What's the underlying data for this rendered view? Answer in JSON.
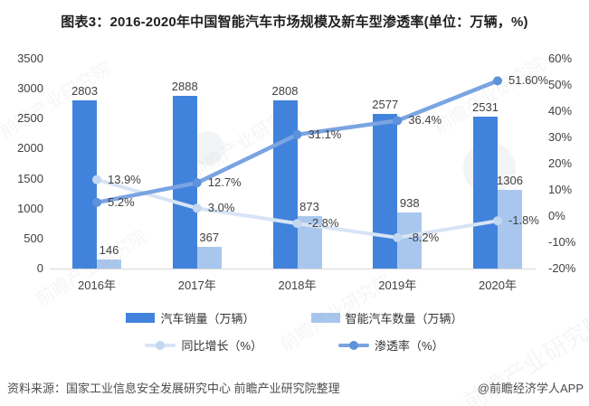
{
  "watermark": {
    "text": "前瞻产业研究院"
  },
  "footer": {
    "source": "资料来源：国家工业信息安全发展研究中心 前瞻产业研究院整理",
    "credit": "@前瞻经济学人APP"
  },
  "chart_data": {
    "type": "combo-bar-line",
    "title": "图表3：2016-2020年中国智能汽车市场规模及新车型渗透率(单位：万辆，%)",
    "categories": [
      "2016年",
      "2017年",
      "2018年",
      "2019年",
      "2020年"
    ],
    "series": [
      {
        "name": "汽车销量（万辆）",
        "type": "bar",
        "axis": "left",
        "color": "#4183DC",
        "values": [
          2803,
          2888,
          2808,
          2577,
          2531
        ],
        "labels": [
          "2803",
          "2888",
          "2808",
          "2577",
          "2531"
        ]
      },
      {
        "name": "智能汽车数量（万辆）",
        "type": "bar",
        "axis": "left",
        "color": "#A9C7EE",
        "values": [
          146,
          367,
          873,
          938,
          1306
        ],
        "labels": [
          "146",
          "367",
          "873",
          "938",
          "1306"
        ]
      },
      {
        "name": "同比增长（%）",
        "type": "line",
        "axis": "right",
        "color": "#D7E4F5",
        "marker_color": "#C2D7F0",
        "values": [
          13.9,
          3.0,
          -2.8,
          -8.2,
          -1.8
        ],
        "labels": [
          "13.9%",
          "3.0%",
          "-2.8%",
          "-8.2%",
          "-1.8%"
        ]
      },
      {
        "name": "渗透率（%）",
        "type": "line",
        "axis": "right",
        "color": "#7AA4E2",
        "marker_color": "#5E92DA",
        "values": [
          5.2,
          12.7,
          31.1,
          36.4,
          51.6
        ],
        "labels": [
          "5.2%",
          "12.7%",
          "31.1%",
          "36.4%",
          "51.60%"
        ]
      }
    ],
    "left_axis": {
      "min": 0,
      "max": 3500,
      "step": 500,
      "tick_labels": [
        "0",
        "500",
        "1000",
        "1500",
        "2000",
        "2500",
        "3000",
        "3500"
      ]
    },
    "right_axis": {
      "min": -20,
      "max": 60,
      "step": 10,
      "tick_labels": [
        "-20%",
        "-10%",
        "0%",
        "10%",
        "20%",
        "30%",
        "40%",
        "50%",
        "60%"
      ]
    },
    "grid": false,
    "legend_position": "bottom"
  }
}
